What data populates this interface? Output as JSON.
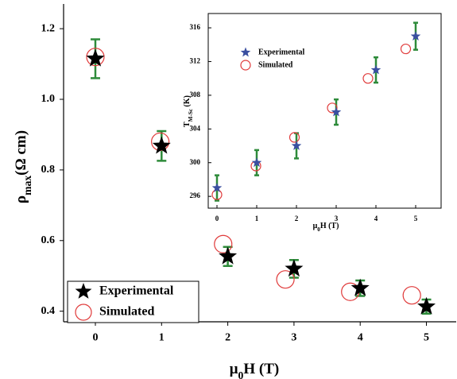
{
  "chart_data": [
    {
      "type": "scatter",
      "x_label": [
        "μ",
        "0",
        "H (T)"
      ],
      "y_label": [
        "ρ",
        "max",
        "(Ω cm)"
      ],
      "xlim": [
        -0.48,
        5.45
      ],
      "ylim": [
        0.37,
        1.27
      ],
      "xticks": [
        0,
        1,
        2,
        3,
        4,
        5
      ],
      "yticks": [
        0.4,
        0.6,
        0.8,
        {
          "value": 1,
          "label": "1.0"
        },
        1.2
      ],
      "legend": "lower left",
      "series": [
        {
          "name": "Experimental",
          "marker": "star",
          "color": "#000000",
          "error_color": "#2e8b3a",
          "x": [
            0,
            1,
            2,
            3,
            4,
            5
          ],
          "values": [
            1.115,
            0.868,
            0.555,
            0.52,
            0.465,
            0.413
          ],
          "errors": [
            0.055,
            0.042,
            0.027,
            0.025,
            0.022,
            0.02
          ]
        },
        {
          "name": "Simulated",
          "marker": "circle",
          "color": "#e03a3a",
          "x": [
            0,
            0.98,
            1.93,
            2.87,
            3.85,
            4.78
          ],
          "values": [
            1.12,
            0.88,
            0.59,
            0.49,
            0.455,
            0.445
          ]
        }
      ]
    },
    {
      "type": "scatter",
      "x_label": [
        "μ",
        "0",
        "H (T)"
      ],
      "y_label": [
        "T",
        "M-Sc",
        " (K)"
      ],
      "xlim": [
        -0.22,
        5.64
      ],
      "ylim": [
        294.6,
        317.7
      ],
      "xticks": [
        0,
        1,
        2,
        3,
        4,
        5
      ],
      "yticks": [
        296,
        300,
        304,
        308,
        312,
        316
      ],
      "legend": "upper left",
      "series": [
        {
          "name": "Experimental",
          "marker": "star",
          "color": "#3a4fa0",
          "error_color": "#2e8b3a",
          "x": [
            0,
            1,
            2,
            3,
            4,
            5
          ],
          "values": [
            297,
            300,
            302,
            306,
            311,
            315
          ],
          "errors": [
            1.5,
            1.5,
            1.5,
            1.5,
            1.5,
            1.6
          ]
        },
        {
          "name": "Simulated",
          "marker": "circle",
          "color": "#e03a3a",
          "x": [
            0,
            0.98,
            1.95,
            2.9,
            3.8,
            4.75
          ],
          "values": [
            296.2,
            299.6,
            303,
            306.5,
            310,
            313.5
          ]
        }
      ]
    }
  ]
}
